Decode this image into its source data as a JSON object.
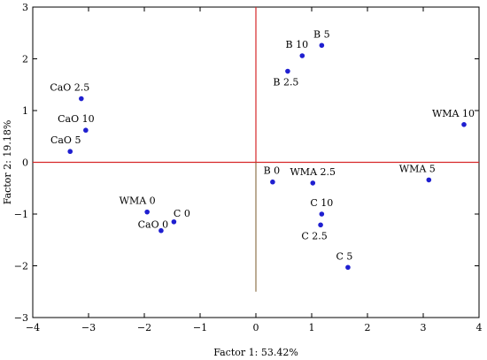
{
  "chart_data": {
    "type": "scatter",
    "xlabel": "Factor 1: 53.42%",
    "ylabel": "Factor 2: 19.18%",
    "xlim": [
      -4,
      4
    ],
    "ylim": [
      -3,
      3
    ],
    "xticks": [
      -4,
      -3,
      -2,
      -1,
      0,
      1,
      2,
      3,
      4
    ],
    "yticks": [
      -3,
      -2,
      -1,
      0,
      1,
      2,
      3
    ],
    "grid": false,
    "reference_lines": {
      "x": 0,
      "y": 0,
      "color": "#d62728"
    },
    "point_color": "#1f1fd0",
    "points": [
      {
        "label": "B 5",
        "x": 1.18,
        "y": 2.26
      },
      {
        "label": "B 10",
        "x": 0.83,
        "y": 2.06
      },
      {
        "label": "B 2.5",
        "x": 0.57,
        "y": 1.76
      },
      {
        "label": "CaO 2.5",
        "x": -3.13,
        "y": 1.23
      },
      {
        "label": "CaO 10",
        "x": -3.05,
        "y": 0.62
      },
      {
        "label": "CaO 5",
        "x": -3.33,
        "y": 0.21
      },
      {
        "label": "WMA 10",
        "x": 3.73,
        "y": 0.73
      },
      {
        "label": "WMA 5",
        "x": 3.1,
        "y": -0.34
      },
      {
        "label": "B 0",
        "x": 0.3,
        "y": -0.38
      },
      {
        "label": "WMA 2.5",
        "x": 1.02,
        "y": -0.4
      },
      {
        "label": "C 10",
        "x": 1.18,
        "y": -1.0
      },
      {
        "label": "C 2.5",
        "x": 1.16,
        "y": -1.21
      },
      {
        "label": "C 5",
        "x": 1.65,
        "y": -2.03
      },
      {
        "label": "WMA 0",
        "x": -1.95,
        "y": -0.96
      },
      {
        "label": "C 0",
        "x": -1.47,
        "y": -1.15
      },
      {
        "label": "CaO 0",
        "x": -1.7,
        "y": -1.32
      }
    ]
  }
}
